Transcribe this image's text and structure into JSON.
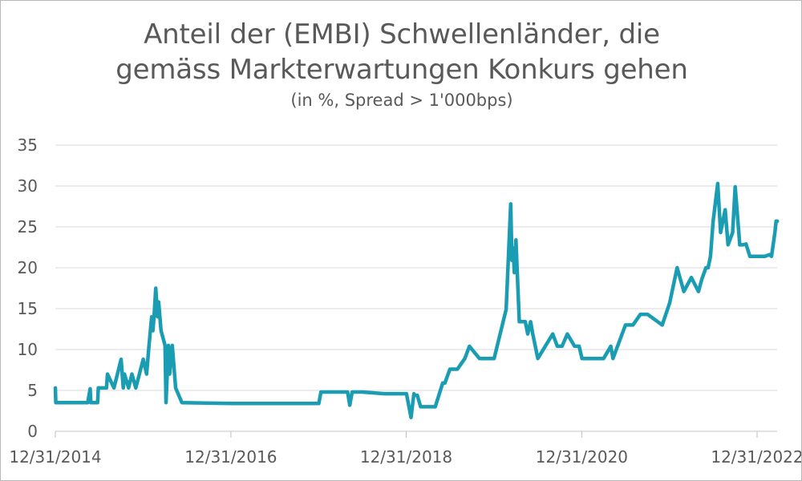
{
  "chart_data": {
    "type": "line",
    "title_lines": [
      "Anteil der (EMBI) Schwellenländer, die",
      "gemäss Markterwartungen Konkurs gehen"
    ],
    "subtitle": "(in %, Spread > 1'000bps)",
    "xlabel": "",
    "ylabel": "",
    "x_ticks": [
      "12/31/2014",
      "12/31/2016",
      "12/31/2018",
      "12/31/2020",
      "12/31/2022"
    ],
    "y_ticks": [
      0,
      5,
      10,
      15,
      20,
      25,
      30,
      35
    ],
    "ylim": [
      0,
      35
    ],
    "grid": "horizontal",
    "line_color": "#1a9db3",
    "series": [
      {
        "x": [
          "2014-12-31",
          "2015-01-02",
          "2015-01-05",
          "2015-01-08",
          "2015-02-15",
          "2015-04-01",
          "2015-05-15",
          "2015-05-25",
          "2015-05-28",
          "2015-06-25",
          "2015-06-28",
          "2015-08-01",
          "2015-08-05",
          "2015-09-01",
          "2015-10-01",
          "2015-10-10",
          "2015-10-15",
          "2015-11-01",
          "2015-11-15",
          "2015-12-01",
          "2016-01-01",
          "2016-01-15",
          "2016-01-25",
          "2016-02-05",
          "2016-02-10",
          "2016-02-15",
          "2016-02-22",
          "2016-03-01",
          "2016-03-05",
          "2016-03-15",
          "2016-04-01",
          "2016-04-05",
          "2016-04-15",
          "2016-04-20",
          "2016-05-01",
          "2016-05-15",
          "2016-06-10",
          "2017-01-01",
          "2017-06-01",
          "2018-01-01",
          "2018-01-10",
          "2018-05-01",
          "2018-05-10",
          "2018-05-20",
          "2018-06-01",
          "2018-07-01",
          "2018-10-01",
          "2019-01-01",
          "2019-01-20",
          "2019-02-01",
          "2019-02-05",
          "2019-02-15",
          "2019-03-01",
          "2019-05-01",
          "2019-06-01",
          "2019-06-10",
          "2019-07-01",
          "2019-08-01",
          "2019-09-01",
          "2019-09-20",
          "2019-11-01",
          "2019-12-01",
          "2020-01-01",
          "2020-02-20",
          "2020-03-10",
          "2020-03-15",
          "2020-03-20",
          "2020-03-25",
          "2020-04-01",
          "2020-04-15",
          "2020-05-01",
          "2020-05-10",
          "2020-05-20",
          "2020-06-01",
          "2020-06-10",
          "2020-07-01",
          "2020-09-01",
          "2020-09-20",
          "2020-10-01",
          "2020-10-10",
          "2020-11-01",
          "2020-12-01",
          "2020-12-20",
          "2021-01-01",
          "2021-03-01",
          "2021-03-10",
          "2021-04-01",
          "2021-05-01",
          "2021-05-10",
          "2021-07-01",
          "2021-07-15",
          "2021-08-01",
          "2021-09-01",
          "2021-10-01",
          "2021-12-01",
          "2022-01-01",
          "2022-02-01",
          "2022-03-01",
          "2022-04-01",
          "2022-05-01",
          "2022-05-15",
          "2022-06-01",
          "2022-06-10",
          "2022-06-20",
          "2022-07-01",
          "2022-07-20",
          "2022-08-01",
          "2022-08-20",
          "2022-09-01",
          "2022-09-20",
          "2022-10-01",
          "2022-10-20",
          "2022-11-01",
          "2022-11-15",
          "2022-12-01",
          "2023-01-01",
          "2023-02-01",
          "2023-02-20",
          "2023-03-01",
          "2023-03-15",
          "2023-03-20",
          "2023-03-25"
        ],
        "y": [
          5.3,
          3.5,
          3.5,
          3.5,
          3.5,
          3.5,
          3.5,
          5.2,
          3.5,
          3.5,
          5.3,
          5.3,
          7.0,
          5.3,
          8.8,
          5.3,
          7.0,
          5.3,
          7.0,
          5.3,
          8.8,
          7.0,
          10.5,
          14.0,
          12.3,
          14.0,
          17.5,
          14.0,
          15.8,
          12.3,
          10.5,
          3.5,
          10.5,
          7.0,
          10.5,
          5.3,
          3.5,
          3.4,
          3.4,
          3.4,
          4.8,
          4.8,
          3.2,
          4.8,
          4.8,
          4.8,
          4.6,
          4.6,
          1.7,
          4.6,
          4.4,
          4.4,
          3.0,
          3.0,
          5.9,
          5.9,
          7.6,
          7.6,
          8.9,
          10.4,
          8.9,
          8.9,
          8.9,
          14.9,
          27.8,
          20.9,
          22.4,
          19.4,
          23.4,
          13.4,
          13.4,
          13.4,
          11.9,
          13.4,
          11.9,
          8.9,
          11.9,
          10.4,
          10.4,
          10.4,
          11.9,
          10.4,
          10.4,
          8.9,
          8.9,
          8.9,
          8.9,
          10.4,
          8.9,
          13.0,
          13.0,
          13.0,
          14.3,
          14.3,
          13.0,
          15.7,
          20.0,
          17.1,
          18.8,
          17.1,
          18.6,
          20.0,
          20.0,
          21.4,
          25.7,
          30.3,
          24.3,
          27.1,
          22.8,
          24.3,
          29.9,
          22.8,
          22.8,
          22.9,
          21.4,
          21.4,
          21.4,
          21.6,
          21.4,
          24.3,
          25.7,
          25.7
        ]
      }
    ]
  }
}
